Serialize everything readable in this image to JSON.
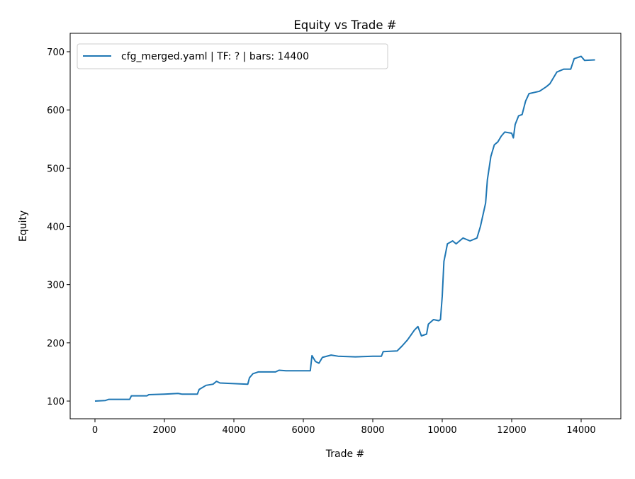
{
  "chart_data": {
    "type": "line",
    "title": "Equity vs Trade #",
    "xlabel": "Trade #",
    "ylabel": "Equity",
    "xlim": [
      -714,
      15143
    ],
    "ylim": [
      69.6,
      731.6
    ],
    "xticks": [
      0,
      2000,
      4000,
      6000,
      8000,
      10000,
      12000,
      14000
    ],
    "yticks": [
      100,
      200,
      300,
      400,
      500,
      600,
      700
    ],
    "grid": false,
    "legend_placement": "upper-left",
    "series": [
      {
        "name": "cfg_merged.yaml | TF: ? | bars: 14400",
        "color": "#1f77b4",
        "x": [
          0,
          300,
          400,
          1000,
          1050,
          1500,
          1550,
          2000,
          2400,
          2500,
          2950,
          3000,
          3200,
          3400,
          3500,
          3600,
          4000,
          4400,
          4450,
          4550,
          4700,
          5200,
          5300,
          5500,
          6200,
          6250,
          6350,
          6450,
          6550,
          6800,
          7000,
          7500,
          8000,
          8250,
          8300,
          8700,
          8850,
          9000,
          9200,
          9300,
          9400,
          9550,
          9600,
          9750,
          9900,
          9950,
          10000,
          10050,
          10100,
          10150,
          10300,
          10400,
          10600,
          10800,
          11000,
          11100,
          11250,
          11300,
          11400,
          11500,
          11600,
          11700,
          11800,
          12000,
          12050,
          12100,
          12200,
          12300,
          12400,
          12500,
          12800,
          13000,
          13100,
          13300,
          13500,
          13700,
          13800,
          14000,
          14100,
          14400
        ],
        "y": [
          100,
          101,
          103,
          103,
          109,
          109,
          111,
          112,
          113,
          112,
          112,
          120,
          127,
          129,
          134,
          131,
          130,
          129,
          140,
          147,
          150,
          150,
          153,
          152,
          152,
          178,
          168,
          165,
          175,
          179,
          177,
          176,
          177,
          177,
          185,
          186,
          195,
          205,
          222,
          228,
          212,
          215,
          232,
          240,
          238,
          240,
          280,
          340,
          355,
          370,
          375,
          370,
          380,
          375,
          380,
          400,
          440,
          480,
          520,
          540,
          545,
          555,
          562,
          560,
          552,
          575,
          590,
          592,
          615,
          628,
          632,
          640,
          645,
          665,
          670,
          670,
          688,
          692,
          685,
          686
        ]
      }
    ]
  }
}
